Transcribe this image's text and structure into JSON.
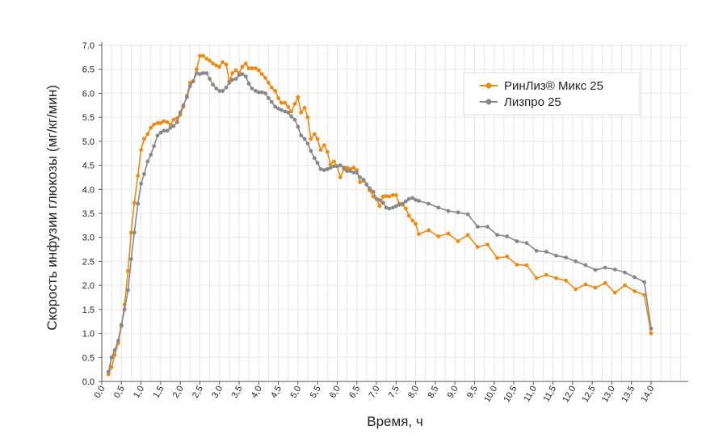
{
  "chart_data": {
    "type": "line",
    "xlabel": "Время, ч",
    "ylabel": "Скорость инфузии глюкозы (мг/кг/мин)",
    "xlim": [
      0,
      14.0
    ],
    "ylim": [
      0,
      7.0
    ],
    "x_ticks": [
      "0,0",
      "0,5",
      "1,0",
      "1,5",
      "2,0",
      "2,5",
      "3,0",
      "3,5",
      "4,0",
      "4,5",
      "5,0",
      "5,5",
      "6,0",
      "6,5",
      "7,0",
      "7,5",
      "8,0",
      "8,5",
      "9,0",
      "9,5",
      "10,0",
      "10,5",
      "11,0",
      "11,5",
      "12,0",
      "12,5",
      "13,0",
      "13,5",
      "14,0"
    ],
    "y_ticks": [
      "0.0",
      "0.5",
      "1.0",
      "1.5",
      "2.0",
      "2.5",
      "3.0",
      "3.5",
      "4.0",
      "4.5",
      "5.0",
      "5.5",
      "6.0",
      "6.5",
      "7.0"
    ],
    "grid": true,
    "legend_position": "top-right",
    "series": [
      {
        "name": "РинЛиз® Микс 25",
        "color": "#EE8A12",
        "points": [
          [
            0.17,
            0.15
          ],
          [
            0.25,
            0.3
          ],
          [
            0.33,
            0.55
          ],
          [
            0.42,
            0.8
          ],
          [
            0.5,
            1.15
          ],
          [
            0.58,
            1.6
          ],
          [
            0.67,
            2.3
          ],
          [
            0.75,
            3.1
          ],
          [
            0.83,
            3.72
          ],
          [
            0.92,
            4.28
          ],
          [
            1.0,
            4.82
          ],
          [
            1.08,
            5.05
          ],
          [
            1.17,
            5.15
          ],
          [
            1.25,
            5.28
          ],
          [
            1.33,
            5.35
          ],
          [
            1.42,
            5.38
          ],
          [
            1.5,
            5.38
          ],
          [
            1.58,
            5.42
          ],
          [
            1.67,
            5.4
          ],
          [
            1.75,
            5.35
          ],
          [
            1.83,
            5.45
          ],
          [
            1.92,
            5.48
          ],
          [
            2.0,
            5.55
          ],
          [
            2.08,
            5.72
          ],
          [
            2.17,
            5.95
          ],
          [
            2.25,
            6.22
          ],
          [
            2.33,
            6.25
          ],
          [
            2.42,
            6.5
          ],
          [
            2.5,
            6.78
          ],
          [
            2.58,
            6.78
          ],
          [
            2.67,
            6.72
          ],
          [
            2.75,
            6.68
          ],
          [
            2.83,
            6.62
          ],
          [
            2.92,
            6.58
          ],
          [
            3.0,
            6.55
          ],
          [
            3.08,
            6.65
          ],
          [
            3.17,
            6.6
          ],
          [
            3.25,
            6.25
          ],
          [
            3.33,
            6.42
          ],
          [
            3.42,
            6.48
          ],
          [
            3.5,
            6.42
          ],
          [
            3.58,
            6.55
          ],
          [
            3.67,
            6.62
          ],
          [
            3.75,
            6.52
          ],
          [
            3.83,
            6.52
          ],
          [
            3.92,
            6.52
          ],
          [
            4.0,
            6.48
          ],
          [
            4.08,
            6.4
          ],
          [
            4.17,
            6.32
          ],
          [
            4.25,
            6.22
          ],
          [
            4.33,
            6.12
          ],
          [
            4.42,
            6.05
          ],
          [
            4.5,
            5.9
          ],
          [
            4.58,
            5.8
          ],
          [
            4.67,
            5.8
          ],
          [
            4.75,
            5.72
          ],
          [
            4.83,
            5.62
          ],
          [
            4.92,
            5.78
          ],
          [
            5.0,
            5.92
          ],
          [
            5.08,
            5.6
          ],
          [
            5.17,
            5.7
          ],
          [
            5.25,
            5.5
          ],
          [
            5.33,
            5.05
          ],
          [
            5.42,
            5.15
          ],
          [
            5.5,
            5.05
          ],
          [
            5.58,
            4.82
          ],
          [
            5.67,
            4.92
          ],
          [
            5.75,
            4.78
          ],
          [
            5.83,
            4.52
          ],
          [
            5.92,
            4.58
          ],
          [
            6.0,
            4.48
          ],
          [
            6.08,
            4.25
          ],
          [
            6.17,
            4.42
          ],
          [
            6.25,
            4.45
          ],
          [
            6.33,
            4.42
          ],
          [
            6.42,
            4.45
          ],
          [
            6.5,
            4.4
          ],
          [
            6.58,
            4.15
          ],
          [
            6.67,
            4.18
          ],
          [
            6.75,
            4.1
          ],
          [
            6.83,
            3.98
          ],
          [
            6.92,
            3.85
          ],
          [
            7.0,
            3.8
          ],
          [
            7.08,
            3.65
          ],
          [
            7.17,
            3.85
          ],
          [
            7.25,
            3.86
          ],
          [
            7.33,
            3.85
          ],
          [
            7.42,
            3.88
          ],
          [
            7.5,
            3.88
          ],
          [
            7.58,
            3.7
          ],
          [
            7.67,
            3.68
          ],
          [
            7.75,
            3.6
          ],
          [
            7.83,
            3.45
          ],
          [
            7.92,
            3.35
          ],
          [
            8.0,
            3.28
          ],
          [
            8.08,
            3.07
          ],
          [
            8.33,
            3.15
          ],
          [
            8.58,
            3.02
          ],
          [
            8.83,
            3.08
          ],
          [
            9.08,
            2.92
          ],
          [
            9.33,
            3.05
          ],
          [
            9.58,
            2.8
          ],
          [
            9.83,
            2.85
          ],
          [
            10.08,
            2.57
          ],
          [
            10.33,
            2.6
          ],
          [
            10.58,
            2.43
          ],
          [
            10.83,
            2.42
          ],
          [
            11.08,
            2.15
          ],
          [
            11.33,
            2.22
          ],
          [
            11.58,
            2.15
          ],
          [
            11.83,
            2.1
          ],
          [
            12.08,
            1.92
          ],
          [
            12.33,
            2.02
          ],
          [
            12.58,
            1.95
          ],
          [
            12.83,
            2.05
          ],
          [
            13.08,
            1.85
          ],
          [
            13.33,
            2.0
          ],
          [
            13.58,
            1.88
          ],
          [
            13.83,
            1.8
          ],
          [
            14.0,
            1.0
          ]
        ]
      },
      {
        "name": "Лизпро 25",
        "color": "#888888",
        "points": [
          [
            0.17,
            0.2
          ],
          [
            0.25,
            0.5
          ],
          [
            0.33,
            0.65
          ],
          [
            0.42,
            0.85
          ],
          [
            0.5,
            1.18
          ],
          [
            0.58,
            1.5
          ],
          [
            0.67,
            1.9
          ],
          [
            0.75,
            2.55
          ],
          [
            0.83,
            3.1
          ],
          [
            0.92,
            3.7
          ],
          [
            1.0,
            4.12
          ],
          [
            1.08,
            4.32
          ],
          [
            1.17,
            4.58
          ],
          [
            1.25,
            4.72
          ],
          [
            1.33,
            4.9
          ],
          [
            1.42,
            5.12
          ],
          [
            1.5,
            5.18
          ],
          [
            1.58,
            5.22
          ],
          [
            1.67,
            5.22
          ],
          [
            1.75,
            5.28
          ],
          [
            1.83,
            5.32
          ],
          [
            1.92,
            5.4
          ],
          [
            2.0,
            5.6
          ],
          [
            2.08,
            5.75
          ],
          [
            2.17,
            5.92
          ],
          [
            2.25,
            6.15
          ],
          [
            2.33,
            6.25
          ],
          [
            2.42,
            6.42
          ],
          [
            2.5,
            6.4
          ],
          [
            2.58,
            6.42
          ],
          [
            2.67,
            6.42
          ],
          [
            2.75,
            6.3
          ],
          [
            2.83,
            6.18
          ],
          [
            2.92,
            6.1
          ],
          [
            3.0,
            6.05
          ],
          [
            3.08,
            6.05
          ],
          [
            3.17,
            6.12
          ],
          [
            3.25,
            6.22
          ],
          [
            3.33,
            6.28
          ],
          [
            3.42,
            6.3
          ],
          [
            3.5,
            6.38
          ],
          [
            3.58,
            6.4
          ],
          [
            3.67,
            6.35
          ],
          [
            3.75,
            6.2
          ],
          [
            3.83,
            6.1
          ],
          [
            3.92,
            6.05
          ],
          [
            4.0,
            6.02
          ],
          [
            4.08,
            6.02
          ],
          [
            4.17,
            6.0
          ],
          [
            4.25,
            5.9
          ],
          [
            4.33,
            5.82
          ],
          [
            4.42,
            5.72
          ],
          [
            4.5,
            5.68
          ],
          [
            4.58,
            5.65
          ],
          [
            4.67,
            5.62
          ],
          [
            4.75,
            5.6
          ],
          [
            4.83,
            5.52
          ],
          [
            4.92,
            5.45
          ],
          [
            5.0,
            5.3
          ],
          [
            5.08,
            5.12
          ],
          [
            5.17,
            5.05
          ],
          [
            5.25,
            4.95
          ],
          [
            5.33,
            4.8
          ],
          [
            5.42,
            4.65
          ],
          [
            5.5,
            4.55
          ],
          [
            5.58,
            4.42
          ],
          [
            5.67,
            4.4
          ],
          [
            5.75,
            4.42
          ],
          [
            5.83,
            4.45
          ],
          [
            5.92,
            4.48
          ],
          [
            6.0,
            4.48
          ],
          [
            6.08,
            4.5
          ],
          [
            6.17,
            4.45
          ],
          [
            6.25,
            4.38
          ],
          [
            6.33,
            4.38
          ],
          [
            6.42,
            4.35
          ],
          [
            6.5,
            4.35
          ],
          [
            6.58,
            4.25
          ],
          [
            6.67,
            4.2
          ],
          [
            6.75,
            4.1
          ],
          [
            6.83,
            4.02
          ],
          [
            6.92,
            3.95
          ],
          [
            7.0,
            3.8
          ],
          [
            7.08,
            3.78
          ],
          [
            7.17,
            3.72
          ],
          [
            7.25,
            3.62
          ],
          [
            7.33,
            3.6
          ],
          [
            7.42,
            3.62
          ],
          [
            7.5,
            3.65
          ],
          [
            7.58,
            3.68
          ],
          [
            7.67,
            3.7
          ],
          [
            7.75,
            3.75
          ],
          [
            7.83,
            3.8
          ],
          [
            7.92,
            3.82
          ],
          [
            8.0,
            3.78
          ],
          [
            8.08,
            3.76
          ],
          [
            8.33,
            3.7
          ],
          [
            8.58,
            3.62
          ],
          [
            8.83,
            3.55
          ],
          [
            9.08,
            3.52
          ],
          [
            9.33,
            3.48
          ],
          [
            9.58,
            3.22
          ],
          [
            9.83,
            3.22
          ],
          [
            10.08,
            3.05
          ],
          [
            10.33,
            3.02
          ],
          [
            10.58,
            2.92
          ],
          [
            10.83,
            2.88
          ],
          [
            11.08,
            2.72
          ],
          [
            11.33,
            2.7
          ],
          [
            11.58,
            2.62
          ],
          [
            11.83,
            2.58
          ],
          [
            12.08,
            2.5
          ],
          [
            12.33,
            2.42
          ],
          [
            12.58,
            2.32
          ],
          [
            12.83,
            2.37
          ],
          [
            13.08,
            2.33
          ],
          [
            13.33,
            2.27
          ],
          [
            13.58,
            2.17
          ],
          [
            13.83,
            2.07
          ],
          [
            14.0,
            1.1
          ]
        ]
      }
    ]
  }
}
